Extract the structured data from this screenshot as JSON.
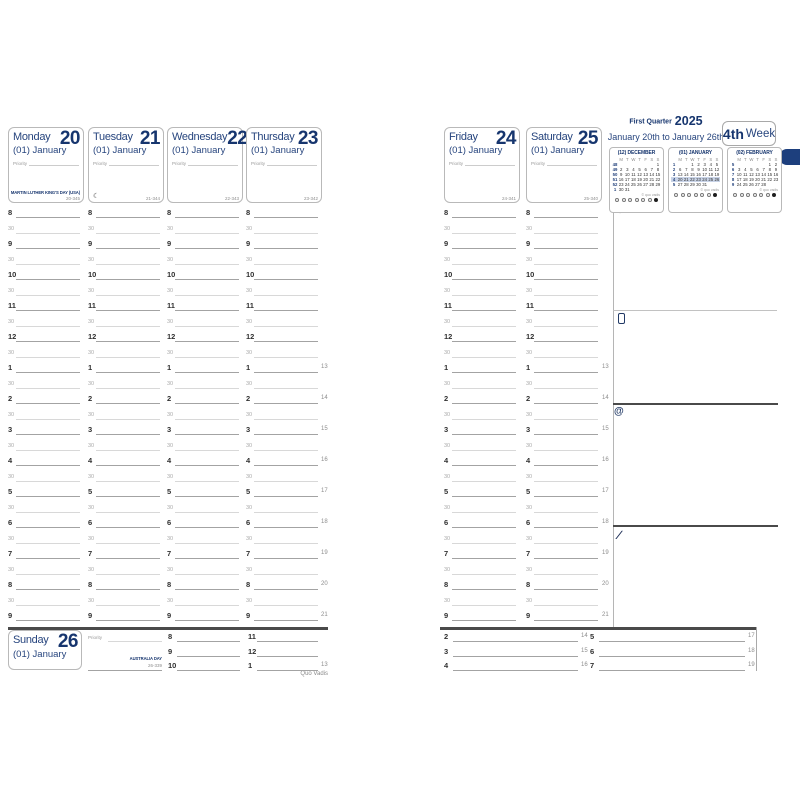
{
  "meta": {
    "brand": "Quo Vadis"
  },
  "palette": {
    "navy": "#27457e",
    "navy_dark": "#16356e",
    "tab_blue": "#1d3f7d",
    "week_highlight": "#c8d3e7"
  },
  "week_header": {
    "quarter": "First Quarter",
    "year": "2025",
    "range": "January 20th to January 26th",
    "week_number": "4th",
    "week_word": "Week"
  },
  "timegrid": {
    "row_labels": [
      "8",
      "30",
      "9",
      "30",
      "10",
      "30",
      "11",
      "30",
      "12",
      "30",
      "1",
      "30",
      "2",
      "30",
      "3",
      "30",
      "4",
      "30",
      "5",
      "30",
      "6",
      "30",
      "7",
      "30",
      "8",
      "30",
      "9"
    ],
    "h24_labels": [
      {
        "row": 10,
        "text": "13"
      },
      {
        "row": 12,
        "text": "14"
      },
      {
        "row": 14,
        "text": "15"
      },
      {
        "row": 16,
        "text": "16"
      },
      {
        "row": 18,
        "text": "17"
      },
      {
        "row": 20,
        "text": "18"
      },
      {
        "row": 22,
        "text": "19"
      },
      {
        "row": 24,
        "text": "20"
      },
      {
        "row": 26,
        "text": "21"
      }
    ]
  },
  "left_page": {
    "days": [
      {
        "name": "Monday",
        "number": "20",
        "month": "(01) January",
        "priority": "Priority",
        "holiday": "MARTIN LUTHER KING'S DAY (USA)",
        "code": "20-345",
        "moon": ""
      },
      {
        "name": "Tuesday",
        "number": "21",
        "month": "(01) January",
        "priority": "Priority",
        "holiday": "",
        "code": "21-344",
        "moon": "☾"
      },
      {
        "name": "Wednesday",
        "number": "22",
        "month": "(01) January",
        "priority": "Priority",
        "holiday": "",
        "code": "22-343",
        "moon": ""
      },
      {
        "name": "Thursday",
        "number": "23",
        "month": "(01) January",
        "priority": "Priority",
        "holiday": "",
        "code": "23-342",
        "moon": ""
      }
    ],
    "sunday": {
      "name": "Sunday",
      "number": "26",
      "month": "(01) January",
      "priority": "Priority",
      "holiday": "AUSTRALIA DAY",
      "code": "26-339"
    },
    "sunday_times_a": [
      {
        "t": "8",
        "h24": ""
      },
      {
        "t": "9",
        "h24": ""
      },
      {
        "t": "10",
        "h24": ""
      }
    ],
    "sunday_times_b": [
      {
        "t": "11",
        "h24": ""
      },
      {
        "t": "12",
        "h24": ""
      },
      {
        "t": "1",
        "h24": "13"
      }
    ],
    "brand": "Quo Vadis"
  },
  "right_page": {
    "days": [
      {
        "name": "Friday",
        "number": "24",
        "month": "(01) January",
        "priority": "Priority",
        "holiday": "",
        "code": "24-341",
        "moon": ""
      },
      {
        "name": "Saturday",
        "number": "25",
        "month": "(01) January",
        "priority": "Priority",
        "holiday": "",
        "code": "25-340",
        "moon": ""
      }
    ],
    "band_times_a": [
      {
        "t": "2",
        "h24": "14"
      },
      {
        "t": "3",
        "h24": "15"
      },
      {
        "t": "4",
        "h24": "16"
      }
    ],
    "band_times_b": [
      {
        "t": "5",
        "h24": "17"
      },
      {
        "t": "6",
        "h24": "18"
      },
      {
        "t": "7",
        "h24": "19"
      }
    ],
    "notes_sections": [
      {
        "icon": "check-icon"
      },
      {
        "icon": "mobile-phone-icon"
      },
      {
        "icon": "at-sign-icon"
      },
      {
        "icon": "pen-icon"
      }
    ],
    "calendars": [
      {
        "title": "(12) DECEMBER",
        "weekdays": [
          "",
          "M",
          "T",
          "W",
          "T",
          "F",
          "S",
          "S"
        ],
        "rows": [
          [
            "48",
            "",
            "",
            "",
            "",
            "",
            "",
            "1"
          ],
          [
            "49",
            "2",
            "3",
            "4",
            "5",
            "6",
            "7",
            "8"
          ],
          [
            "50",
            "9",
            "10",
            "11",
            "12",
            "13",
            "14",
            "15"
          ],
          [
            "51",
            "16",
            "17",
            "18",
            "19",
            "20",
            "21",
            "22"
          ],
          [
            "52",
            "23",
            "24",
            "25",
            "26",
            "27",
            "28",
            "29"
          ],
          [
            "1",
            "30",
            "31",
            "",
            "",
            "",
            "",
            ""
          ]
        ],
        "highlight_row": -1,
        "copyright": "© quo vadis"
      },
      {
        "title": "(01) JANUARY",
        "weekdays": [
          "",
          "M",
          "T",
          "W",
          "T",
          "F",
          "S",
          "S"
        ],
        "rows": [
          [
            "1",
            "",
            "",
            "1",
            "2",
            "3",
            "4",
            "5"
          ],
          [
            "2",
            "6",
            "7",
            "8",
            "9",
            "10",
            "11",
            "12"
          ],
          [
            "3",
            "13",
            "14",
            "15",
            "16",
            "17",
            "18",
            "19"
          ],
          [
            "4",
            "20",
            "21",
            "22",
            "23",
            "24",
            "25",
            "26"
          ],
          [
            "5",
            "27",
            "28",
            "29",
            "30",
            "31",
            "",
            ""
          ]
        ],
        "highlight_row": 3,
        "copyright": "© quo vadis"
      },
      {
        "title": "(02) FEBRUARY",
        "weekdays": [
          "",
          "M",
          "T",
          "W",
          "T",
          "F",
          "S",
          "S"
        ],
        "rows": [
          [
            "5",
            "",
            "",
            "",
            "",
            "",
            "1",
            "2"
          ],
          [
            "6",
            "3",
            "4",
            "5",
            "6",
            "7",
            "8",
            "9"
          ],
          [
            "7",
            "10",
            "11",
            "12",
            "13",
            "14",
            "15",
            "16"
          ],
          [
            "8",
            "17",
            "18",
            "19",
            "20",
            "21",
            "22",
            "23"
          ],
          [
            "9",
            "24",
            "25",
            "26",
            "27",
            "28",
            "",
            ""
          ]
        ],
        "highlight_row": -1,
        "copyright": "© quo vadis"
      }
    ]
  }
}
